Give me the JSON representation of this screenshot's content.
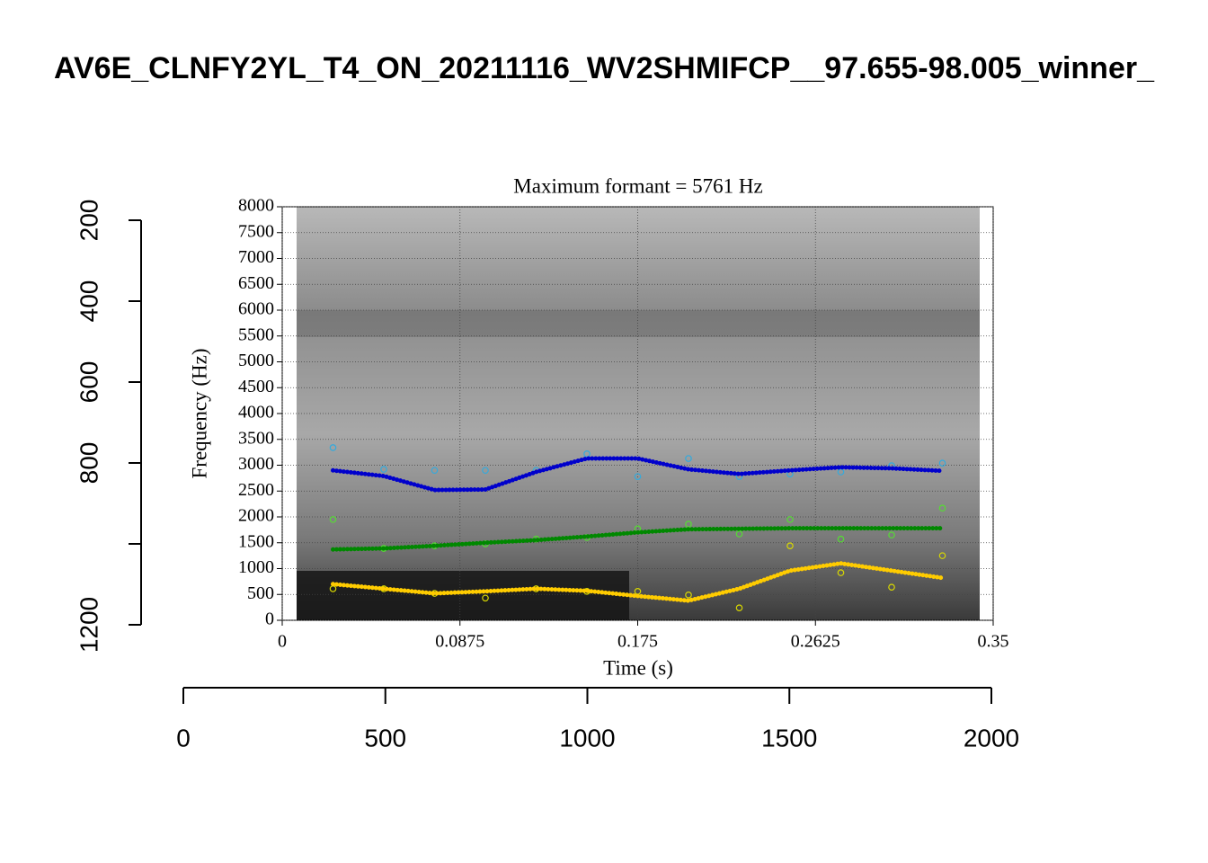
{
  "chart_data": [
    {
      "type": "scatter",
      "title": "Maximum formant = 5761 Hz",
      "x_label": "Time (s)",
      "y_label": "Frequency (Hz)",
      "x": [
        0.025,
        0.05,
        0.075,
        0.1,
        0.125,
        0.15,
        0.175,
        0.2,
        0.225,
        0.25,
        0.275,
        0.3,
        0.325
      ],
      "xlim": [
        0,
        0.35
      ],
      "xticks": [
        0,
        0.0875,
        0.175,
        0.2625,
        0.35
      ],
      "ylim": [
        0,
        8000
      ],
      "yticks": [
        0,
        500,
        1000,
        1500,
        2000,
        2500,
        3000,
        3500,
        4000,
        4500,
        5000,
        5500,
        6000,
        6500,
        7000,
        7500,
        8000
      ],
      "grid": true,
      "series": [
        {
          "style": "points",
          "color": "#d8d800",
          "values": [
            610,
            610,
            520,
            430,
            610,
            560,
            560,
            490,
            240,
            1440,
            920,
            640,
            1250
          ]
        },
        {
          "style": "points",
          "color": "#55dd33",
          "values": [
            1950,
            1390,
            1440,
            1480,
            1570,
            1600,
            1770,
            1860,
            1670,
            1950,
            1570,
            1650,
            2170
          ]
        },
        {
          "style": "points",
          "color": "#33aadd",
          "values": [
            3340,
            2920,
            2900,
            2900,
            2900,
            3220,
            2780,
            3130,
            2780,
            2830,
            2870,
            2990,
            3040
          ]
        },
        {
          "style": "line",
          "color": "#ffcc00",
          "values": [
            700,
            610,
            520,
            560,
            610,
            570,
            470,
            380,
            610,
            960,
            1100,
            960,
            820
          ]
        },
        {
          "style": "line",
          "color": "#008800",
          "values": [
            1370,
            1390,
            1440,
            1500,
            1550,
            1620,
            1700,
            1760,
            1770,
            1780,
            1780,
            1780,
            1780
          ]
        },
        {
          "style": "line",
          "color": "#0000cc",
          "values": [
            2900,
            2790,
            2520,
            2530,
            2870,
            3130,
            3130,
            2920,
            2830,
            2900,
            2960,
            2940,
            2890
          ]
        }
      ]
    },
    {
      "type": "axes",
      "title": "AV6E_CLNFY2YL_T4_ON_20211116_WV2SHMIFCP__97.655-98.005_winner_",
      "xlim": [
        0,
        2000
      ],
      "xticks": [
        0,
        500,
        1000,
        1500,
        2000
      ],
      "ylim": [
        200,
        1200
      ],
      "yreverse": true,
      "yticks": [
        200,
        400,
        600,
        800,
        {
          "value": 1000,
          "label": null
        },
        1200
      ]
    }
  ]
}
